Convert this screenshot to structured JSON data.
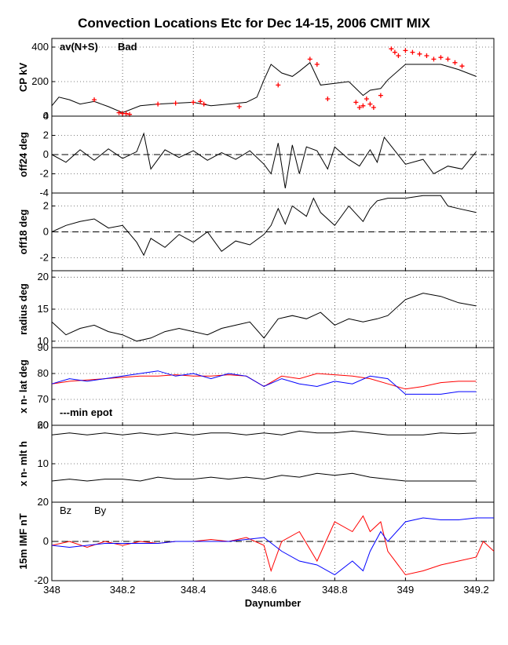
{
  "chart_data": {
    "title": "Convection Locations Etc for Dec 14-15, 2006 CMIT MIX",
    "xlabel": "Daynumber",
    "x_ticks": [
      "348",
      "348.2",
      "348.4",
      "348.6",
      "348.8",
      "349",
      "349.2"
    ],
    "xlim": [
      348,
      349.25
    ],
    "panels": [
      {
        "type": "line",
        "ylabel": "CP kV",
        "ylim": [
          0,
          450
        ],
        "y_ticks": [
          "0",
          "200",
          "400"
        ],
        "legend": [
          "av(N+S)",
          "Bad"
        ],
        "series": [
          {
            "name": "av(N+S)",
            "color": "#000000",
            "x": [
              348.0,
              348.02,
              348.05,
              348.08,
              348.12,
              348.16,
              348.2,
              348.25,
              348.3,
              348.35,
              348.4,
              348.45,
              348.5,
              348.55,
              348.58,
              348.6,
              348.62,
              348.65,
              348.68,
              348.7,
              348.73,
              348.76,
              348.8,
              348.84,
              348.88,
              348.9,
              348.93,
              348.95,
              349.0,
              349.05,
              349.1,
              349.15,
              349.2
            ],
            "y": [
              60,
              110,
              95,
              70,
              85,
              55,
              20,
              60,
              70,
              75,
              80,
              60,
              70,
              80,
              110,
              210,
              300,
              250,
              230,
              260,
              310,
              180,
              190,
              200,
              120,
              150,
              160,
              210,
              300,
              300,
              300,
              270,
              230
            ]
          }
        ],
        "bad_points": {
          "name": "Bad",
          "color": "#ff0000",
          "x": [
            348.12,
            348.19,
            348.2,
            348.21,
            348.22,
            348.3,
            348.35,
            348.4,
            348.42,
            348.43,
            348.53,
            348.64,
            348.73,
            348.75,
            348.78,
            348.86,
            348.87,
            348.88,
            348.89,
            348.9,
            348.91,
            348.93,
            348.96,
            348.97,
            348.98,
            349.0,
            349.02,
            349.04,
            349.06,
            349.08,
            349.1,
            349.12,
            349.14,
            349.16
          ],
          "y": [
            95,
            20,
            15,
            15,
            10,
            70,
            75,
            80,
            85,
            70,
            55,
            180,
            330,
            300,
            100,
            80,
            50,
            60,
            100,
            70,
            50,
            120,
            390,
            370,
            350,
            380,
            370,
            360,
            350,
            330,
            340,
            330,
            310,
            290
          ]
        }
      },
      {
        "type": "line",
        "ylabel": "off24 deg",
        "ylim": [
          -4,
          4
        ],
        "y_ticks": [
          "-4",
          "-2",
          "0",
          "2",
          "4"
        ],
        "series": [
          {
            "name": "off24",
            "color": "#000000",
            "x": [
              348.0,
              348.04,
              348.08,
              348.12,
              348.16,
              348.2,
              348.24,
              348.26,
              348.28,
              348.32,
              348.36,
              348.4,
              348.44,
              348.48,
              348.52,
              348.56,
              348.6,
              348.62,
              348.64,
              348.66,
              348.68,
              348.7,
              348.72,
              348.75,
              348.78,
              348.8,
              348.84,
              348.87,
              348.9,
              348.92,
              348.94,
              349.0,
              349.05,
              349.08,
              349.12,
              349.16,
              349.2
            ],
            "y": [
              0,
              -0.8,
              0.5,
              -0.6,
              0.6,
              -0.4,
              0.3,
              2.2,
              -1.5,
              0.5,
              -0.3,
              0.4,
              -0.6,
              0.2,
              -0.5,
              0.4,
              -1.0,
              -2.0,
              1.2,
              -3.5,
              1.0,
              -2.0,
              0.8,
              0.4,
              -1.5,
              0.8,
              -0.5,
              -1.2,
              0.5,
              -0.8,
              1.8,
              -1.0,
              -0.5,
              -2.0,
              -1.2,
              -1.5,
              0.3
            ]
          }
        ]
      },
      {
        "type": "line",
        "ylabel": "off18 deg",
        "ylim": [
          -3,
          3
        ],
        "y_ticks": [
          "-2",
          "0",
          "2"
        ],
        "series": [
          {
            "name": "off18",
            "color": "#000000",
            "x": [
              348.0,
              348.04,
              348.08,
              348.12,
              348.16,
              348.2,
              348.24,
              348.26,
              348.28,
              348.32,
              348.36,
              348.4,
              348.44,
              348.48,
              348.52,
              348.56,
              348.6,
              348.62,
              348.64,
              348.66,
              348.68,
              348.72,
              348.74,
              348.76,
              348.8,
              348.84,
              348.88,
              348.9,
              348.92,
              348.95,
              349.0,
              349.05,
              349.1,
              349.12,
              349.15,
              349.2
            ],
            "y": [
              0,
              0.5,
              0.8,
              1.0,
              0.3,
              0.5,
              -0.8,
              -1.8,
              -0.5,
              -1.2,
              -0.2,
              -0.8,
              0,
              -1.5,
              -0.7,
              -1.0,
              -0.2,
              0.5,
              1.8,
              0.6,
              2.0,
              1.2,
              2.6,
              1.5,
              0.5,
              2.0,
              0.8,
              1.8,
              2.4,
              2.6,
              2.6,
              2.8,
              2.8,
              2.0,
              1.8,
              1.5
            ]
          }
        ]
      },
      {
        "type": "line",
        "ylabel": "radius deg",
        "ylim": [
          9,
          21
        ],
        "y_ticks": [
          "10",
          "15",
          "20"
        ],
        "series": [
          {
            "name": "radius",
            "color": "#000000",
            "x": [
              348.0,
              348.04,
              348.08,
              348.12,
              348.16,
              348.2,
              348.24,
              348.28,
              348.32,
              348.36,
              348.4,
              348.44,
              348.48,
              348.52,
              348.56,
              348.6,
              348.62,
              348.64,
              348.68,
              348.72,
              348.76,
              348.8,
              348.84,
              348.88,
              348.92,
              348.95,
              349.0,
              349.05,
              349.1,
              349.15,
              349.2
            ],
            "y": [
              13,
              11,
              12,
              12.5,
              11.5,
              11,
              10,
              10.5,
              11.5,
              12,
              11.5,
              11,
              12,
              12.5,
              13,
              10.5,
              12,
              13.5,
              14,
              13.5,
              14.5,
              12.5,
              13.5,
              13,
              13.5,
              14,
              16.5,
              17.5,
              17,
              16,
              15.5
            ]
          }
        ]
      },
      {
        "type": "line",
        "ylabel": "x n- lat deg",
        "ylim": [
          60,
          90
        ],
        "y_ticks": [
          "60",
          "70",
          "80",
          "90"
        ],
        "legend": [
          "---min epot"
        ],
        "series": [
          {
            "name": "lat red",
            "color": "#ff0000",
            "x": [
              348.0,
              348.05,
              348.1,
              348.15,
              348.2,
              348.25,
              348.3,
              348.35,
              348.4,
              348.45,
              348.5,
              348.55,
              348.6,
              348.65,
              348.7,
              348.75,
              348.8,
              348.85,
              348.9,
              348.95,
              349.0,
              349.05,
              349.1,
              349.15,
              349.2
            ],
            "y": [
              76,
              77,
              77.5,
              78,
              78.5,
              79,
              79,
              79.5,
              79,
              79,
              79.5,
              79,
              75,
              79,
              78,
              80,
              79.5,
              79,
              78,
              76,
              74,
              75,
              76.5,
              77,
              77
            ]
          },
          {
            "name": "lat blue",
            "color": "#0000ff",
            "x": [
              348.0,
              348.05,
              348.1,
              348.15,
              348.2,
              348.25,
              348.3,
              348.35,
              348.4,
              348.45,
              348.5,
              348.55,
              348.6,
              348.65,
              348.7,
              348.75,
              348.8,
              348.85,
              348.9,
              348.95,
              349.0,
              349.05,
              349.1,
              349.15,
              349.2
            ],
            "y": [
              76,
              78,
              77,
              78,
              79,
              80,
              81,
              79,
              80,
              78,
              80,
              79,
              75,
              78,
              76,
              75,
              77,
              76,
              79,
              78,
              72,
              72,
              72,
              73,
              73
            ]
          }
        ]
      },
      {
        "type": "line",
        "ylabel": "x n- mlt h",
        "ylim": [
          0,
          20
        ],
        "y_ticks": [
          "10",
          "20"
        ],
        "series": [
          {
            "name": "mlt upper",
            "color": "#000000",
            "x": [
              348.0,
              348.05,
              348.1,
              348.15,
              348.2,
              348.25,
              348.3,
              348.35,
              348.4,
              348.45,
              348.5,
              348.55,
              348.6,
              348.65,
              348.7,
              348.75,
              348.8,
              348.85,
              348.9,
              348.95,
              349.0,
              349.05,
              349.1,
              349.15,
              349.2
            ],
            "y": [
              17.5,
              18,
              17.5,
              18,
              17.5,
              18,
              17.5,
              18,
              17.5,
              18,
              18,
              17.5,
              18,
              17.5,
              18.5,
              18,
              18,
              18.5,
              18,
              17.5,
              17.5,
              17.5,
              18,
              17.8,
              18
            ]
          },
          {
            "name": "mlt lower",
            "color": "#000000",
            "x": [
              348.0,
              348.05,
              348.1,
              348.15,
              348.2,
              348.25,
              348.3,
              348.35,
              348.4,
              348.45,
              348.5,
              348.55,
              348.6,
              348.65,
              348.7,
              348.75,
              348.8,
              348.85,
              348.9,
              348.95,
              349.0,
              349.05,
              349.1,
              349.15,
              349.2
            ],
            "y": [
              5.5,
              6,
              5.5,
              6,
              6,
              5.5,
              6.5,
              6,
              6,
              6.5,
              6,
              6.5,
              6,
              7,
              6.5,
              7.5,
              7,
              7.5,
              6.5,
              6,
              5.5,
              5.5,
              5.5,
              5.5,
              5.5
            ]
          }
        ]
      },
      {
        "type": "line",
        "ylabel": "15m IMF nT",
        "ylim": [
          -20,
          20
        ],
        "y_ticks": [
          "-20",
          "0",
          "20"
        ],
        "legend": [
          "Bz",
          "By"
        ],
        "series": [
          {
            "name": "Bz",
            "color": "#ff0000",
            "x": [
              348.0,
              348.05,
              348.1,
              348.15,
              348.2,
              348.25,
              348.3,
              348.35,
              348.4,
              348.45,
              348.5,
              348.55,
              348.6,
              348.62,
              348.65,
              348.7,
              348.75,
              348.8,
              348.85,
              348.88,
              348.9,
              348.93,
              348.95,
              349.0,
              349.05,
              349.1,
              349.15,
              349.2,
              349.22,
              349.25
            ],
            "y": [
              -2,
              0,
              -3,
              0,
              -2,
              0,
              -1,
              0,
              0,
              1,
              0,
              2,
              -2,
              -15,
              0,
              5,
              -10,
              10,
              5,
              13,
              5,
              10,
              -5,
              -17,
              -15,
              -12,
              -10,
              -8,
              0,
              -5
            ]
          },
          {
            "name": "By",
            "color": "#0000ff",
            "x": [
              348.0,
              348.05,
              348.1,
              348.15,
              348.2,
              348.25,
              348.3,
              348.35,
              348.4,
              348.45,
              348.5,
              348.55,
              348.6,
              348.65,
              348.7,
              348.75,
              348.8,
              348.85,
              348.88,
              348.9,
              348.93,
              348.95,
              349.0,
              349.05,
              349.1,
              349.15,
              349.2,
              349.25
            ],
            "y": [
              -2,
              -3,
              -2,
              -1,
              -1,
              -1,
              -1,
              0,
              0,
              0,
              0,
              1,
              2,
              -5,
              -10,
              -12,
              -17,
              -10,
              -15,
              -5,
              5,
              0,
              10,
              12,
              11,
              11,
              12,
              12
            ]
          }
        ]
      }
    ]
  }
}
